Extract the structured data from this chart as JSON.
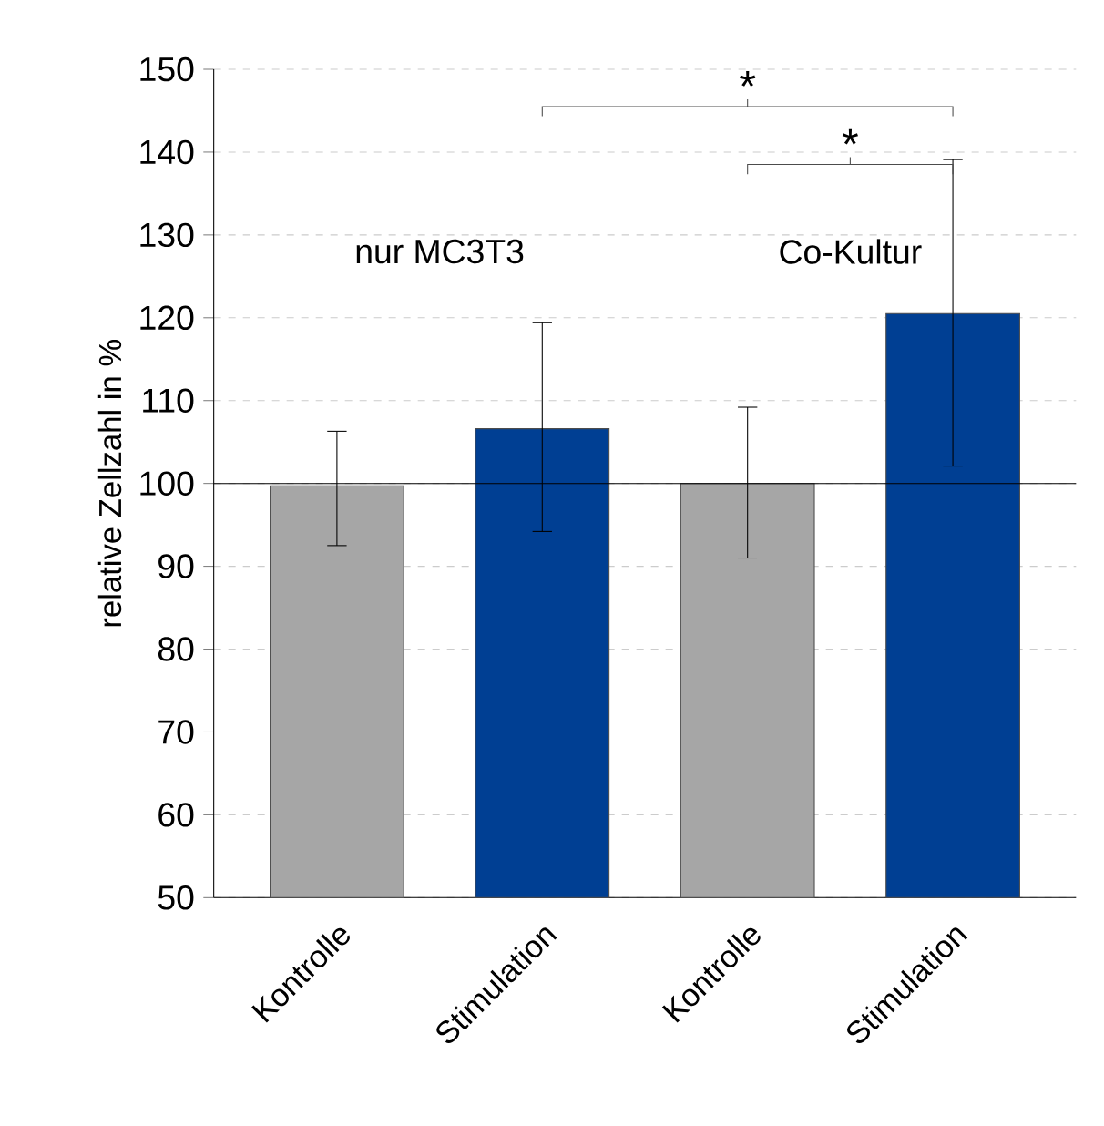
{
  "chart_data": {
    "type": "bar",
    "ylabel": "relative Zellzahl in %",
    "categories": [
      "Kontrolle",
      "Stimulation",
      "Kontrolle",
      "Stimulation"
    ],
    "values": [
      99.7,
      106.6,
      100,
      120.5
    ],
    "colors": [
      "#a6a6a6",
      "#003f93",
      "#a6a6a6",
      "#003f93"
    ],
    "errors": [
      [
        92.5,
        106.3
      ],
      [
        94.2,
        119.4
      ],
      [
        91,
        109.2
      ],
      [
        102.1,
        139.1
      ]
    ],
    "ylim": [
      50,
      150
    ],
    "yticks": [
      50,
      60,
      70,
      80,
      90,
      100,
      110,
      120,
      130,
      140,
      150
    ],
    "grid": "y",
    "ref_lines": [
      {
        "axis": "y",
        "value": 100
      }
    ],
    "annotations": [
      "nur MC3T3",
      "Co-Kultur",
      "*",
      "*"
    ]
  }
}
